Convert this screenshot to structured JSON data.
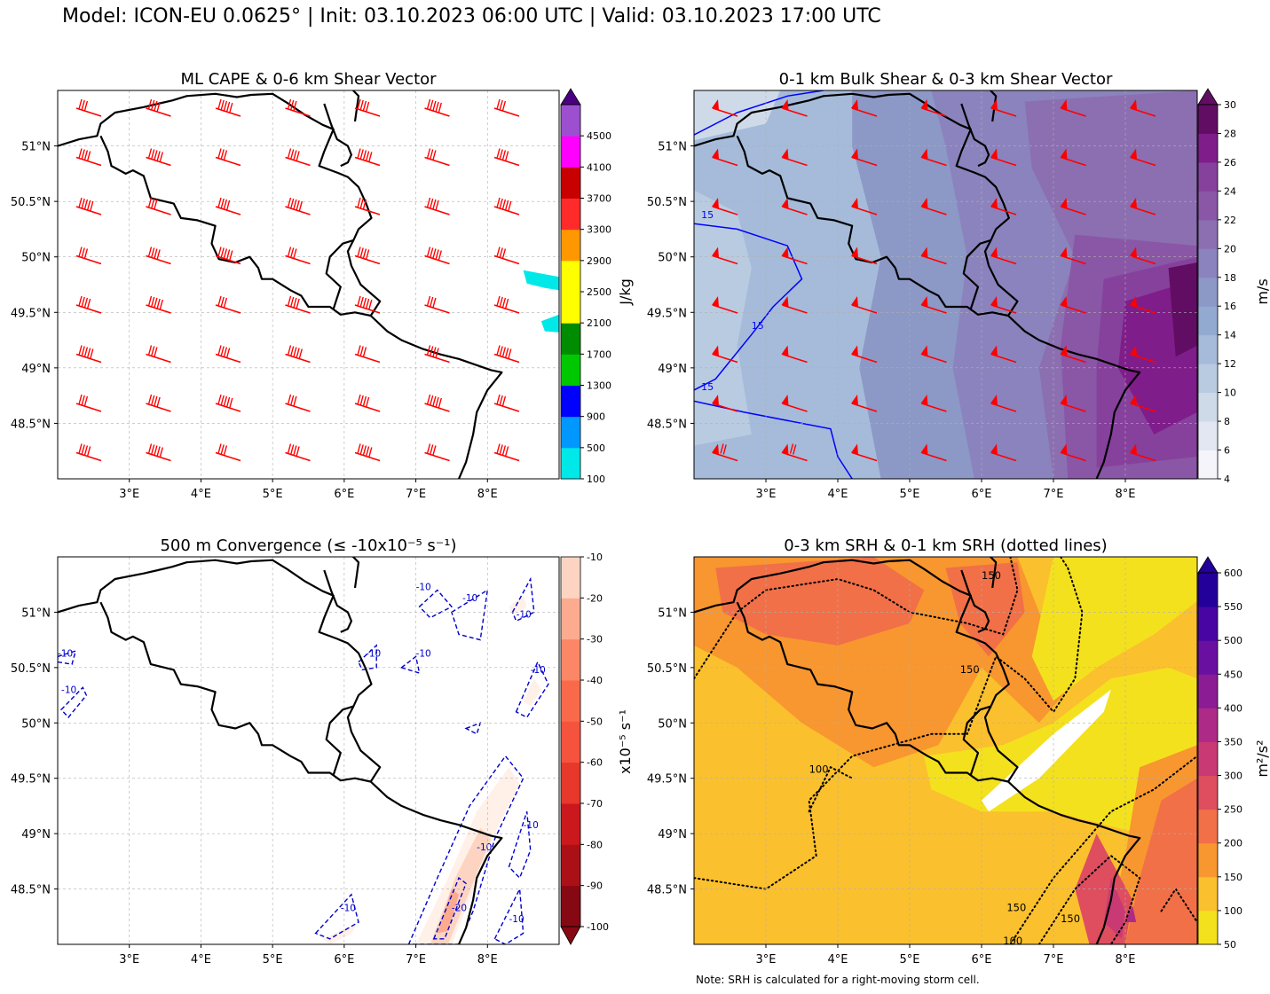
{
  "figure": {
    "suptitle": "Model: ICON-EU 0.0625° | Init: 03.10.2023 06:00 UTC | Valid: 03.10.2023 17:00 UTC",
    "note": "Note: SRH is calculated for a right-moving storm cell."
  },
  "chart_data": [
    {
      "type": "heatmap",
      "title": "ML CAPE & 0-6 km Shear Vector",
      "xlim": [
        2.0,
        9.0
      ],
      "ylim": [
        48.0,
        51.5
      ],
      "x_ticks": [
        "3°E",
        "4°E",
        "5°E",
        "6°E",
        "7°E",
        "8°E"
      ],
      "y_ticks": [
        "48.5°N",
        "49°N",
        "49.5°N",
        "50°N",
        "50.5°N",
        "51°N"
      ],
      "grid": true,
      "colorbar": {
        "label": "J/kg",
        "levels": [
          100,
          500,
          900,
          1300,
          1700,
          2100,
          2500,
          2900,
          3300,
          3700,
          4100,
          4500,
          4900
        ],
        "tick_labels": [
          "100",
          "500",
          "900",
          "1300",
          "1700",
          "2100",
          "2500",
          "2900",
          "3300",
          "3700",
          "4100",
          "4500"
        ],
        "colors": [
          "#00e8e8",
          "#0098ff",
          "#0000ff",
          "#00c800",
          "#008c00",
          "#ffff00",
          "#ffff00",
          "#ff9800",
          "#ff2a2a",
          "#c80000",
          "#ff00ff",
          "#9c50d0",
          "#4b0082"
        ],
        "extend": "max"
      },
      "features": [
        {
          "name": "CAPE area near 8.9°E, 49.8°N",
          "value_range": [
            100,
            500
          ]
        },
        {
          "name": "CAPE area near 8.9°E, 49.4°N",
          "value_range": [
            100,
            500
          ]
        }
      ],
      "vectors": {
        "name": "0-6 km shear barbs",
        "color": "#ff0000",
        "direction": "westerly",
        "full_barbs_range": [
          3,
          5
        ]
      }
    },
    {
      "type": "heatmap",
      "title": "0-1 km Bulk Shear & 0-3 km Shear Vector",
      "xlim": [
        2.0,
        9.0
      ],
      "ylim": [
        48.0,
        51.5
      ],
      "x_ticks": [
        "3°E",
        "4°E",
        "5°E",
        "6°E",
        "7°E",
        "8°E"
      ],
      "y_ticks": [
        "48.5°N",
        "49°N",
        "49.5°N",
        "50°N",
        "50.5°N",
        "51°N"
      ],
      "grid": true,
      "colorbar": {
        "label": "m/s",
        "levels": [
          4,
          6,
          8,
          10,
          12,
          14,
          16,
          18,
          20,
          22,
          24,
          26,
          28,
          30
        ],
        "tick_labels": [
          "4",
          "6",
          "8",
          "10",
          "12",
          "14",
          "16",
          "18",
          "20",
          "22",
          "24",
          "26",
          "28",
          "30"
        ],
        "colors": [
          "#f4f4fa",
          "#e2e7f1",
          "#cfdae9",
          "#b9cbe1",
          "#a5bbd9",
          "#93aad0",
          "#8c98c6",
          "#8b83bd",
          "#8b6fb1",
          "#8a56a6",
          "#86419c",
          "#7f1d8a",
          "#620d64"
        ],
        "extend": "max"
      },
      "contours": {
        "name": "15 m/s contour",
        "color": "#0000ff",
        "labels": [
          "15",
          "15",
          "15"
        ]
      },
      "vectors": {
        "name": "0-3 km shear barbs",
        "color": "#ff0000",
        "direction": "west-southwesterly"
      }
    },
    {
      "type": "heatmap",
      "title": "500 m Convergence (≤ -10x10⁻⁵ s⁻¹)",
      "xlim": [
        2.0,
        9.0
      ],
      "ylim": [
        48.0,
        51.5
      ],
      "x_ticks": [
        "3°E",
        "4°E",
        "5°E",
        "6°E",
        "7°E",
        "8°E"
      ],
      "y_ticks": [
        "48.5°N",
        "49°N",
        "49.5°N",
        "50°N",
        "50.5°N",
        "51°N"
      ],
      "grid": true,
      "colorbar": {
        "label": "x10⁻⁵ s⁻¹",
        "levels": [
          -100,
          -90,
          -80,
          -70,
          -60,
          -50,
          -40,
          -30,
          -20,
          -10
        ],
        "tick_labels": [
          "-10",
          "-20",
          "-30",
          "-40",
          "-50",
          "-60",
          "-70",
          "-80",
          "-90",
          "-100"
        ],
        "colors": [
          "#860812",
          "#ac1017",
          "#cb181d",
          "#e8372b",
          "#f5533d",
          "#fa6a4a",
          "#fc8767",
          "#fcab8f",
          "#fdd4c2",
          "#fff0e8"
        ],
        "extend": "min"
      },
      "contours": {
        "name": "-10 contour",
        "color": "#0000cc",
        "style": "dashed",
        "labels": [
          "-10",
          "-10",
          "-10",
          "-10",
          "-10",
          "-10",
          "-10",
          "-10",
          "-10",
          "-10",
          "-20",
          "-10",
          "-10"
        ]
      }
    },
    {
      "type": "heatmap",
      "title": "0-3 km SRH & 0-1 km SRH (dotted lines)",
      "xlim": [
        2.0,
        9.0
      ],
      "ylim": [
        48.0,
        51.5
      ],
      "x_ticks": [
        "3°E",
        "4°E",
        "5°E",
        "6°E",
        "7°E",
        "8°E"
      ],
      "y_ticks": [
        "48.5°N",
        "49°N",
        "49.5°N",
        "50°N",
        "50.5°N",
        "51°N"
      ],
      "grid": true,
      "colorbar": {
        "label": "m²/s²",
        "levels": [
          50,
          100,
          150,
          200,
          250,
          300,
          350,
          400,
          450,
          500,
          550,
          600
        ],
        "tick_labels": [
          "50",
          "100",
          "150",
          "200",
          "250",
          "300",
          "350",
          "400",
          "450",
          "500",
          "550",
          "600"
        ],
        "colors": [
          "#f4e11e",
          "#fbc02d",
          "#f8962f",
          "#f17047",
          "#de4e5f",
          "#c93a74",
          "#ad2b86",
          "#8c1c94",
          "#6a10a0",
          "#4805a4",
          "#23009a"
        ],
        "extend": "max"
      },
      "contours": {
        "name": "0-1 km SRH dotted contours",
        "color": "#000000",
        "style": "dotted",
        "labels": [
          "150",
          "150",
          "100",
          "150",
          "150",
          "100"
        ]
      }
    }
  ]
}
